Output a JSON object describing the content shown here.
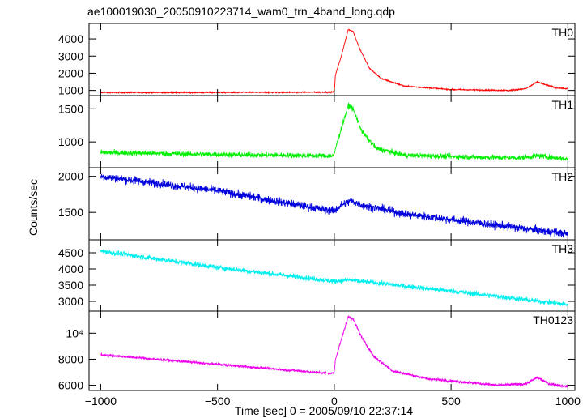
{
  "chart_data": {
    "type": "line",
    "title": "ae100019030_20050910223714_wam0_trn_4band_long.qdp",
    "xlabel": "Time [sec] 0 = 2005/09/10 22:37:14",
    "ylabel": "Counts/sec",
    "xlim": [
      -1050,
      1030
    ],
    "xticks": [
      -1000,
      -500,
      0,
      500,
      1000
    ],
    "xtick_labels": [
      "−1000",
      "−500",
      "0",
      "500",
      "1000"
    ],
    "grid": false,
    "panels": [
      {
        "name": "TH0",
        "color": "#ff0000",
        "ylim": [
          700,
          4900
        ],
        "yticks": [
          1000,
          2000,
          3000,
          4000
        ],
        "ytick_labels": [
          "1000",
          "2000",
          "3000",
          "4000"
        ],
        "noise": 25,
        "curve": [
          [
            -1000,
            880
          ],
          [
            -500,
            880
          ],
          [
            -10,
            900
          ],
          [
            0,
            920
          ],
          [
            5,
            1900
          ],
          [
            30,
            3000
          ],
          [
            60,
            4550
          ],
          [
            80,
            4450
          ],
          [
            110,
            3400
          ],
          [
            150,
            2300
          ],
          [
            200,
            1700
          ],
          [
            300,
            1250
          ],
          [
            500,
            1050
          ],
          [
            750,
            1000
          ],
          [
            820,
            1100
          ],
          [
            870,
            1500
          ],
          [
            900,
            1350
          ],
          [
            950,
            1150
          ],
          [
            1000,
            1100
          ]
        ]
      },
      {
        "name": "TH1",
        "color": "#00ee00",
        "ylim": [
          610,
          1700
        ],
        "yticks": [
          1000,
          1500
        ],
        "ytick_labels": [
          "1000",
          "1500"
        ],
        "noise": 28,
        "curve": [
          [
            -1000,
            840
          ],
          [
            -500,
            810
          ],
          [
            -10,
            790
          ],
          [
            0,
            800
          ],
          [
            5,
            900
          ],
          [
            30,
            1200
          ],
          [
            60,
            1550
          ],
          [
            80,
            1500
          ],
          [
            120,
            1150
          ],
          [
            180,
            900
          ],
          [
            300,
            800
          ],
          [
            600,
            770
          ],
          [
            800,
            760
          ],
          [
            870,
            790
          ],
          [
            1000,
            740
          ]
        ]
      },
      {
        "name": "TH2",
        "color": "#0000dd",
        "ylim": [
          1120,
          2120
        ],
        "yticks": [
          1500,
          2000
        ],
        "ytick_labels": [
          "1500",
          "2000"
        ],
        "noise": 40,
        "curve": [
          [
            -1000,
            2000
          ],
          [
            -500,
            1800
          ],
          [
            -100,
            1570
          ],
          [
            0,
            1520
          ],
          [
            30,
            1600
          ],
          [
            70,
            1660
          ],
          [
            120,
            1600
          ],
          [
            300,
            1480
          ],
          [
            500,
            1400
          ],
          [
            1000,
            1200
          ]
        ]
      },
      {
        "name": "TH3",
        "color": "#00eeee",
        "ylim": [
          2700,
          4900
        ],
        "yticks": [
          3000,
          3500,
          4000,
          4500
        ],
        "ytick_labels": [
          "3000",
          "3500",
          "4000",
          "4500"
        ],
        "noise": 55,
        "curve": [
          [
            -1000,
            4550
          ],
          [
            -500,
            4050
          ],
          [
            0,
            3620
          ],
          [
            60,
            3660
          ],
          [
            500,
            3320
          ],
          [
            1000,
            2900
          ]
        ]
      },
      {
        "name": "TH0123",
        "color": "#ee00ee",
        "ylim": [
          5600,
          11700
        ],
        "yticks": [
          6000,
          8000,
          10000
        ],
        "ytick_labels": [
          "6000",
          "8000",
          "10⁴"
        ],
        "noise": 70,
        "curve": [
          [
            -1000,
            8350
          ],
          [
            -500,
            7600
          ],
          [
            -10,
            6900
          ],
          [
            0,
            7000
          ],
          [
            5,
            8000
          ],
          [
            30,
            9500
          ],
          [
            60,
            11300
          ],
          [
            80,
            11100
          ],
          [
            120,
            9600
          ],
          [
            170,
            8200
          ],
          [
            250,
            7100
          ],
          [
            400,
            6500
          ],
          [
            700,
            6000
          ],
          [
            820,
            6100
          ],
          [
            870,
            6600
          ],
          [
            920,
            6100
          ],
          [
            1000,
            5900
          ]
        ]
      }
    ]
  }
}
